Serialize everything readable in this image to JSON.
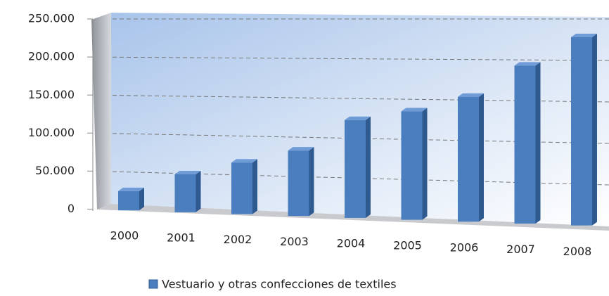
{
  "chart_data": {
    "type": "bar",
    "categories": [
      "2000",
      "2001",
      "2002",
      "2003",
      "2004",
      "2005",
      "2006",
      "2007",
      "2008"
    ],
    "series": [
      {
        "name": "Vestuario y otras confecciones de textiles",
        "color": "#4a7ebf",
        "values": [
          25000,
          49000,
          66000,
          83000,
          123000,
          135000,
          154000,
          193000,
          228000
        ]
      }
    ],
    "ylim": [
      0,
      250000
    ],
    "yticks": [
      0,
      {
        "value": 50000,
        "label": "50.000"
      },
      {
        "value": 100000,
        "label": "100.000"
      },
      {
        "value": 150000,
        "label": "150.000"
      },
      {
        "value": 200000,
        "label": "200.000"
      },
      {
        "value": 250000,
        "label": "250.000"
      }
    ],
    "grid": true,
    "legend": "bottom"
  }
}
